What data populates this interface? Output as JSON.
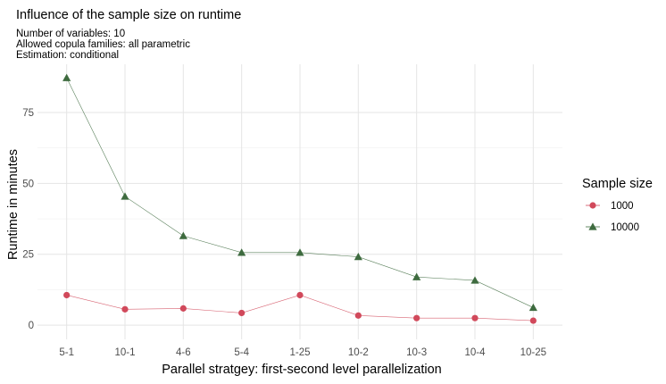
{
  "chart_data": {
    "type": "line",
    "title": "Influence of the sample size on runtime",
    "subtitle": [
      "Number of variables: 10",
      "Allowed copula families: all parametric",
      "Estimation: conditional"
    ],
    "xlabel": "Parallel stratgey: first-second level parallelization",
    "ylabel": "Runtime in minutes",
    "categories": [
      "5-1",
      "10-1",
      "4-6",
      "5-4",
      "1-25",
      "10-2",
      "10-3",
      "10-4",
      "10-25"
    ],
    "ylim": [
      -5,
      92
    ],
    "yticks": [
      0,
      25,
      50,
      75
    ],
    "grid": true,
    "legend": {
      "title": "Sample size",
      "position": "right"
    },
    "series": [
      {
        "name": "1000",
        "marker": "circle",
        "color": "#d1495b",
        "values": [
          10.6,
          5.6,
          5.9,
          4.3,
          10.6,
          3.4,
          2.5,
          2.5,
          1.6
        ]
      },
      {
        "name": "10000",
        "marker": "triangle",
        "color": "#3e6b3f",
        "values": [
          87.2,
          45.4,
          31.5,
          25.6,
          25.6,
          24.1,
          17.0,
          15.8,
          6.2
        ]
      }
    ]
  }
}
